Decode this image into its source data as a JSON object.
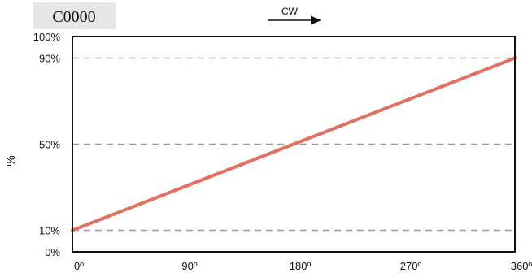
{
  "header": {
    "code": "C0000",
    "direction": "CW"
  },
  "colors": {
    "line": "#e07060",
    "grid": "#999999",
    "code_box": "#e6e6e6"
  },
  "chart_data": {
    "type": "line",
    "title": "",
    "xlabel": "",
    "ylabel": "%",
    "xlim": [
      0,
      360
    ],
    "ylim": [
      0,
      100
    ],
    "x_ticks": [
      {
        "value": 0,
        "label": "0º"
      },
      {
        "value": 90,
        "label": "90º"
      },
      {
        "value": 180,
        "label": "180º"
      },
      {
        "value": 270,
        "label": "270º"
      },
      {
        "value": 360,
        "label": "360º"
      }
    ],
    "y_ticks": [
      {
        "value": 0,
        "label": "0%"
      },
      {
        "value": 10,
        "label": "10%"
      },
      {
        "value": 50,
        "label": "50%"
      },
      {
        "value": 90,
        "label": "90%"
      },
      {
        "value": 100,
        "label": "100%"
      }
    ],
    "grid_y": [
      10,
      50,
      90
    ],
    "grid_style": "dashed",
    "series": [
      {
        "x": [
          0,
          360
        ],
        "y": [
          10,
          90
        ]
      }
    ]
  }
}
